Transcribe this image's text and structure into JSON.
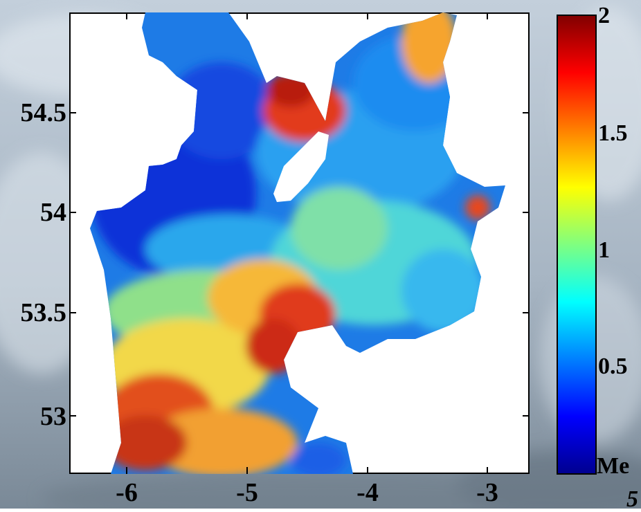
{
  "chart_data": {
    "type": "heatmap",
    "title": "",
    "xlabel": "",
    "ylabel": "",
    "x_ticks": [
      "-6",
      "-5",
      "-4",
      "-3"
    ],
    "y_ticks": [
      "54.5",
      "54",
      "53.5",
      "53"
    ],
    "xlim": [
      -6.2,
      -2.6
    ],
    "ylim": [
      52.7,
      54.95
    ],
    "colorbar": {
      "colormap": "jet",
      "range": [
        0,
        2
      ],
      "ticks": [
        "2",
        "1.5",
        "1",
        "0.5"
      ],
      "unit_label": "Me"
    },
    "land_color": "#ffffff",
    "value_field_note": "",
    "clipped_text": "5"
  },
  "colors": {
    "frame": "#000000",
    "land": "#ffffff",
    "sky_bg_top": "#b9c6d4",
    "sky_bg_bottom": "#7d8c9a"
  }
}
